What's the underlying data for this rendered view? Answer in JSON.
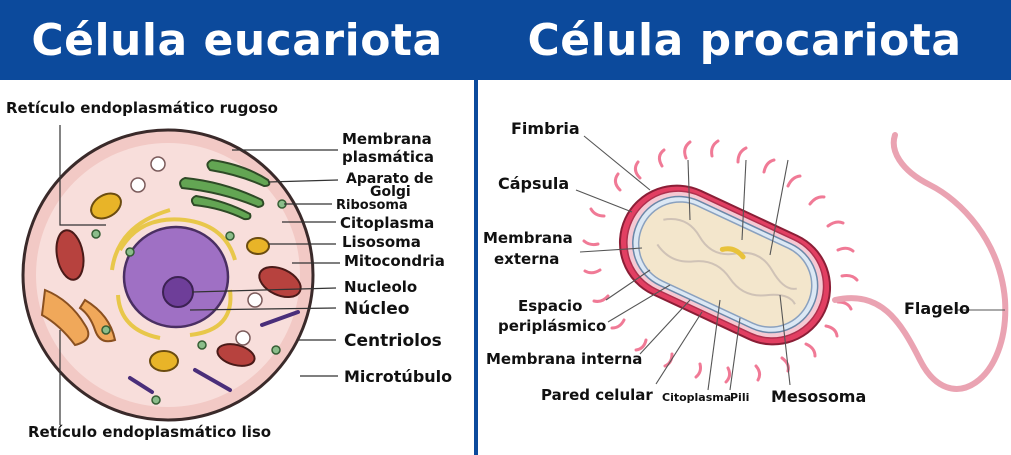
{
  "titles": {
    "left": "Célula eucariota",
    "right": "Célula procariota"
  },
  "eukaryote_labels": {
    "rer": "Retículo endoplasmático rugoso",
    "membrana_1": "Membrana",
    "membrana_2": "plasmática",
    "golgi_1": "Aparato de",
    "golgi_2": "Golgi",
    "ribosoma": "Ribosoma",
    "citoplasma": "Citoplasma",
    "lisosoma": "Lisosoma",
    "mitocondria": "Mitocondria",
    "nucleolo": "Nucleolo",
    "nucleo": "Núcleo",
    "centriolos": "Centriolos",
    "microtubulo": "Microtúbulo",
    "rel": "Retículo endoplasmático liso"
  },
  "prokaryote_labels": {
    "fimbria": "Fimbria",
    "capsula": "Cápsula",
    "membrana_ext_1": "Membrana",
    "membrana_ext_2": "externa",
    "espacio_1": "Espacio",
    "espacio_2": "periplásmico",
    "membrana_int": "Membrana interna",
    "pared": "Pared celular",
    "citoplasma": "Citoplasma",
    "pili": "Pili",
    "mesosoma": "Mesosoma",
    "flagelo": "Flagelo"
  },
  "colors": {
    "header_bg": "#0c4a9c",
    "header_text": "#ffffff",
    "cell_fill": "#f6d6d3",
    "nucleus": "#9f70c4",
    "golgi": "#5a9e4a",
    "mitochondria": "#b7423e",
    "capsule": "#e23f62",
    "pili": "#f07a96"
  }
}
